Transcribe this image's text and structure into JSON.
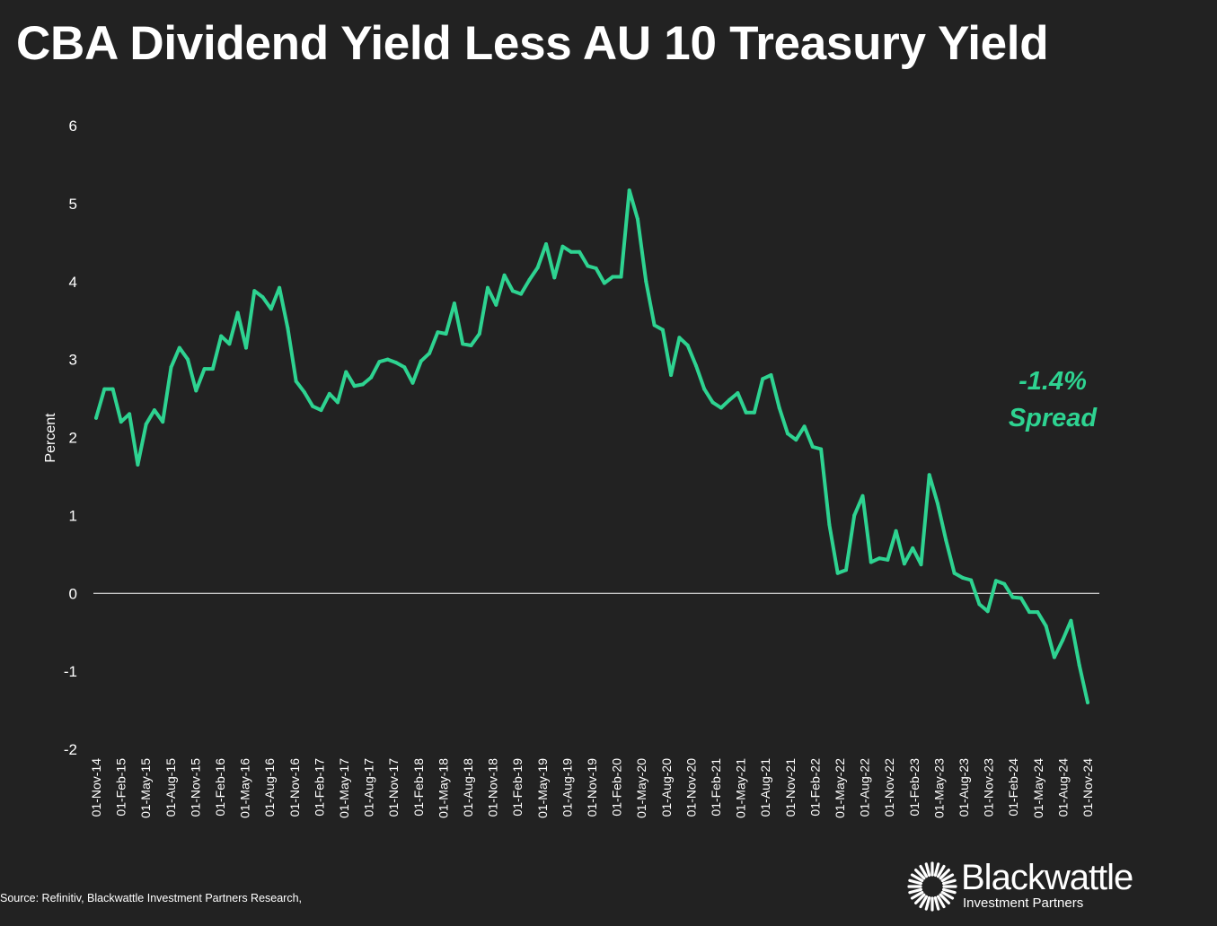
{
  "colors": {
    "background": "#222222",
    "line": "#2ed391",
    "text": "#ffffff"
  },
  "logo": {
    "name": "Blackwattle",
    "subtitle": "Investment Partners",
    "icon": "sunburst-icon"
  },
  "source": "Source: Refinitiv, Blackwattle Investment Partners Research,",
  "chart_data": {
    "type": "line",
    "title": "CBA Dividend Yield Less AU 10 Treasury Yield",
    "xlabel": "",
    "ylabel": "Percent",
    "ylim": [
      -2,
      6
    ],
    "yticks": [
      "6",
      "5",
      "4",
      "3",
      "2",
      "1",
      "0",
      "-1",
      "-2"
    ],
    "ytick_values": [
      6,
      5,
      4,
      3,
      2,
      1,
      0,
      -1,
      -2
    ],
    "xticks": [
      "01-Nov-14",
      "01-Feb-15",
      "01-May-15",
      "01-Aug-15",
      "01-Nov-15",
      "01-Feb-16",
      "01-May-16",
      "01-Aug-16",
      "01-Nov-16",
      "01-Feb-17",
      "01-May-17",
      "01-Aug-17",
      "01-Nov-17",
      "01-Feb-18",
      "01-May-18",
      "01-Aug-18",
      "01-Nov-18",
      "01-Feb-19",
      "01-May-19",
      "01-Aug-19",
      "01-Nov-19",
      "01-Feb-20",
      "01-May-20",
      "01-Aug-20",
      "01-Nov-20",
      "01-Feb-21",
      "01-May-21",
      "01-Aug-21",
      "01-Nov-21",
      "01-Feb-22",
      "01-May-22",
      "01-Aug-22",
      "01-Nov-22",
      "01-Feb-23",
      "01-May-23",
      "01-Aug-23",
      "01-Nov-23",
      "01-Feb-24",
      "01-May-24",
      "01-Aug-24",
      "01-Nov-24"
    ],
    "zero_line": true,
    "grid": false,
    "annotation": {
      "line1": "-1.4%",
      "line2": "Spread",
      "value": -1.4
    },
    "series": [
      {
        "name": "CBA Dividend Yield Less AU 10 Treasury Yield",
        "values": [
          2.25,
          2.62,
          2.62,
          2.2,
          2.3,
          1.65,
          2.17,
          2.35,
          2.2,
          2.9,
          3.15,
          3.0,
          2.6,
          2.88,
          2.88,
          3.3,
          3.2,
          3.6,
          3.15,
          3.88,
          3.8,
          3.65,
          3.92,
          3.4,
          2.72,
          2.58,
          2.4,
          2.35,
          2.56,
          2.45,
          2.84,
          2.66,
          2.68,
          2.77,
          2.97,
          3.0,
          2.96,
          2.9,
          2.7,
          2.98,
          3.08,
          3.35,
          3.33,
          3.72,
          3.2,
          3.18,
          3.33,
          3.92,
          3.7,
          4.08,
          3.88,
          3.84,
          4.02,
          4.18,
          4.48,
          4.05,
          4.45,
          4.38,
          4.38,
          4.2,
          4.17,
          3.98,
          4.06,
          4.06,
          5.17,
          4.8,
          4.0,
          3.44,
          3.38,
          2.8,
          3.28,
          3.18,
          2.92,
          2.62,
          2.45,
          2.38,
          2.48,
          2.57,
          2.32,
          2.32,
          2.75,
          2.8,
          2.38,
          2.05,
          1.97,
          2.14,
          1.88,
          1.85,
          0.88,
          0.26,
          0.3,
          1.0,
          1.25,
          0.4,
          0.45,
          0.43,
          0.8,
          0.38,
          0.58,
          0.37,
          1.52,
          1.15,
          0.68,
          0.26,
          0.2,
          0.17,
          -0.14,
          -0.23,
          0.16,
          0.12,
          -0.05,
          -0.06,
          -0.24,
          -0.24,
          -0.42,
          -0.82,
          -0.6,
          -0.35,
          -0.92,
          -1.4
        ]
      }
    ]
  }
}
